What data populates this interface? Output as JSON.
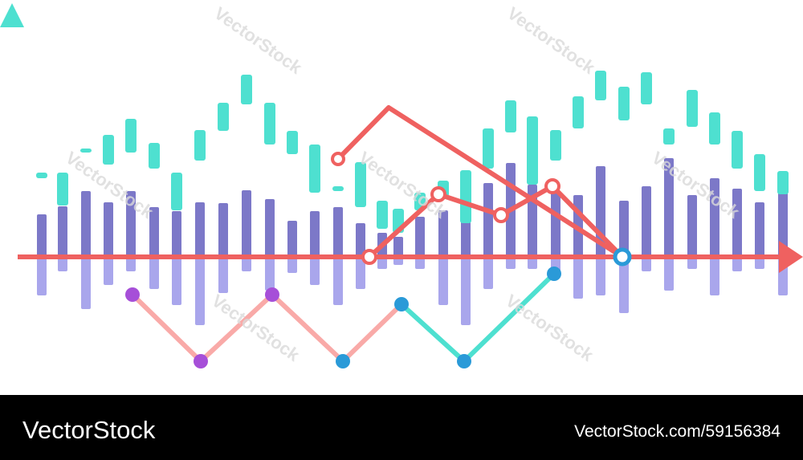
{
  "watermark": "VectorStock",
  "footer": {
    "brand": "VectorStock",
    "id": "VectorStock.com/59156384"
  }
}
